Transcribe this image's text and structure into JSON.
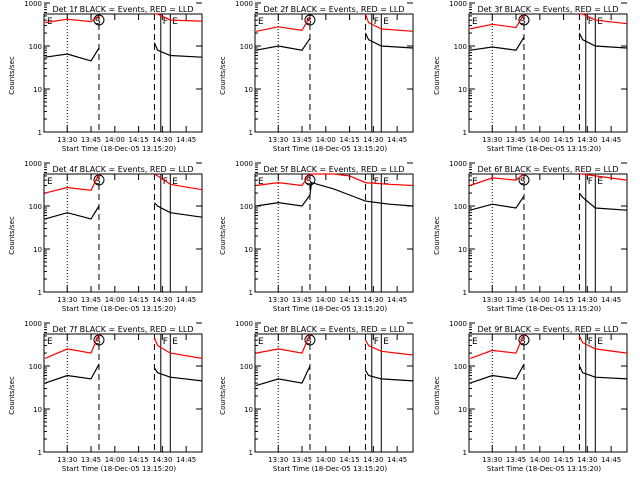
{
  "figure": {
    "start_time_label": "Start Time (18-Dec-05 13:15:20)",
    "ylabel": "Counts/sec"
  },
  "colors": {
    "events": "#000000",
    "lld": "#ff0000",
    "axis": "#000000",
    "background": "#ffffff"
  },
  "chart_data": [
    {
      "type": "line",
      "title": "Det 1f BLACK = Events, RED = LLD",
      "xlabel": "Start Time (18-Dec-05 13:15:20)",
      "ylabel": "Counts/sec",
      "yscale": "log",
      "ylim": [
        1,
        1000
      ],
      "xlim": [
        "13:15:20",
        "14:55:00"
      ],
      "xticks": [
        "13:30",
        "13:45",
        "14:00",
        "14:15",
        "14:30",
        "14:45"
      ],
      "yticks": [
        "1",
        "10",
        "100",
        "1000"
      ],
      "annotations": [
        "E",
        "S",
        "F",
        "E"
      ],
      "markers": {
        "dotted": [
          "13:30"
        ],
        "dashed": [
          "13:50",
          "14:25"
        ],
        "solid": [
          "14:29",
          "14:35"
        ]
      },
      "series": [
        {
          "color": "red",
          "x": [
            "13:16",
            "13:30",
            "13:45",
            "13:50",
            "13:51",
            "14:25",
            "14:27",
            "14:35",
            "14:55"
          ],
          "values": [
            350,
            420,
            370,
            500,
            null,
            700,
            600,
            400,
            380
          ]
        },
        {
          "color": "black",
          "x": [
            "13:16",
            "13:30",
            "13:45",
            "13:50",
            "13:51",
            "14:25",
            "14:27",
            "14:35",
            "14:55"
          ],
          "values": [
            55,
            65,
            45,
            90,
            null,
            120,
            80,
            60,
            55
          ]
        }
      ]
    },
    {
      "type": "line",
      "title": "Det 2f BLACK = Events, RED = LLD",
      "xlabel": "Start Time (18-Dec-05 13:15:20)",
      "ylabel": "Counts/sec",
      "yscale": "log",
      "ylim": [
        1,
        1000
      ],
      "xlim": [
        "13:15:20",
        "14:55:00"
      ],
      "xticks": [
        "13:30",
        "13:45",
        "14:00",
        "14:15",
        "14:30",
        "14:45"
      ],
      "yticks": [
        "1",
        "10",
        "100",
        "1000"
      ],
      "annotations": [
        "E",
        "S",
        "F",
        "E"
      ],
      "markers": {
        "dotted": [
          "13:30"
        ],
        "dashed": [
          "13:50",
          "14:25"
        ],
        "solid": [
          "14:29",
          "14:35"
        ]
      },
      "series": [
        {
          "color": "red",
          "x": [
            "13:16",
            "13:30",
            "13:45",
            "13:50",
            "13:51",
            "14:25",
            "14:27",
            "14:35",
            "14:55"
          ],
          "values": [
            220,
            280,
            230,
            480,
            null,
            650,
            350,
            250,
            220
          ]
        },
        {
          "color": "black",
          "x": [
            "13:16",
            "13:30",
            "13:45",
            "13:50",
            "13:51",
            "14:25",
            "14:27",
            "14:35",
            "14:55"
          ],
          "values": [
            80,
            100,
            80,
            150,
            null,
            200,
            140,
            100,
            90
          ]
        }
      ]
    },
    {
      "type": "line",
      "title": "Det 3f BLACK = Events, RED = LLD",
      "xlabel": "Start Time (18-Dec-05 13:15:20)",
      "ylabel": "Counts/sec",
      "yscale": "log",
      "ylim": [
        1,
        1000
      ],
      "xlim": [
        "13:15:20",
        "14:55:00"
      ],
      "xticks": [
        "13:30",
        "13:45",
        "14:00",
        "14:15",
        "14:30",
        "14:45"
      ],
      "yticks": [
        "1",
        "10",
        "100",
        "1000"
      ],
      "annotations": [
        "E",
        "S",
        "F",
        "E"
      ],
      "markers": {
        "dotted": [
          "13:30"
        ],
        "dashed": [
          "13:50",
          "14:25"
        ],
        "solid": [
          "14:29",
          "14:35"
        ]
      },
      "series": [
        {
          "color": "red",
          "x": [
            "13:16",
            "13:30",
            "13:45",
            "13:50",
            "13:51",
            "14:25",
            "14:27",
            "14:35",
            "14:55"
          ],
          "values": [
            250,
            320,
            270,
            650,
            null,
            700,
            600,
            400,
            330
          ]
        },
        {
          "color": "black",
          "x": [
            "13:16",
            "13:30",
            "13:45",
            "13:50",
            "13:51",
            "14:25",
            "14:27",
            "14:35",
            "14:55"
          ],
          "values": [
            80,
            95,
            80,
            160,
            null,
            200,
            140,
            100,
            90
          ]
        }
      ]
    },
    {
      "type": "line",
      "title": "Det 4f BLACK = Events, RED = LLD",
      "xlabel": "Start Time (18-Dec-05 13:15:20)",
      "ylabel": "Counts/sec",
      "yscale": "log",
      "ylim": [
        1,
        1000
      ],
      "xlim": [
        "13:15:20",
        "14:55:00"
      ],
      "xticks": [
        "13:30",
        "13:45",
        "14:00",
        "14:15",
        "14:30",
        "14:45"
      ],
      "yticks": [
        "1",
        "10",
        "100",
        "1000"
      ],
      "annotations": [
        "E",
        "S",
        "F",
        "E"
      ],
      "markers": {
        "dotted": [
          "13:30"
        ],
        "dashed": [
          "13:50",
          "14:25"
        ],
        "solid": [
          "14:29",
          "14:35"
        ]
      },
      "series": [
        {
          "color": "red",
          "x": [
            "13:16",
            "13:30",
            "13:45",
            "13:50",
            "13:51",
            "14:25",
            "14:27",
            "14:35",
            "14:55"
          ],
          "values": [
            200,
            270,
            230,
            650,
            null,
            600,
            500,
            320,
            240
          ]
        },
        {
          "color": "black",
          "x": [
            "13:16",
            "13:30",
            "13:45",
            "13:50",
            "13:51",
            "14:25",
            "14:27",
            "14:35",
            "14:55"
          ],
          "values": [
            50,
            70,
            50,
            100,
            null,
            120,
            100,
            70,
            55
          ]
        }
      ]
    },
    {
      "type": "line",
      "title": "Det 5f BLACK = Events, RED = LLD",
      "xlabel": "Start Time (18-Dec-05 13:15:20)",
      "ylabel": "Counts/sec",
      "yscale": "log",
      "ylim": [
        1,
        1000
      ],
      "xlim": [
        "13:15:20",
        "14:55:00"
      ],
      "xticks": [
        "13:30",
        "13:45",
        "14:00",
        "14:15",
        "14:30",
        "14:45"
      ],
      "yticks": [
        "1",
        "10",
        "100",
        "1000"
      ],
      "annotations": [
        "E",
        "S",
        "F",
        "E"
      ],
      "markers": {
        "dotted": [
          "13:30"
        ],
        "dashed": [
          "13:50",
          "14:25"
        ],
        "solid": [
          "14:29",
          "14:35"
        ]
      },
      "series": [
        {
          "color": "red",
          "x": [
            "13:16",
            "13:30",
            "13:45",
            "13:50",
            "13:51",
            "14:05",
            "14:15",
            "14:25",
            "14:40",
            "14:55"
          ],
          "values": [
            300,
            350,
            300,
            600,
            1000,
            900,
            500,
            350,
            320,
            300
          ]
        },
        {
          "color": "black",
          "x": [
            "13:16",
            "13:30",
            "13:45",
            "13:50",
            "13:51",
            "14:05",
            "14:15",
            "14:25",
            "14:40",
            "14:55"
          ],
          "values": [
            100,
            120,
            100,
            180,
            350,
            250,
            180,
            130,
            110,
            100
          ]
        }
      ]
    },
    {
      "type": "line",
      "title": "Det 6f BLACK = Events, RED = LLD",
      "xlabel": "Start Time (18-Dec-05 13:15:20)",
      "ylabel": "Counts/sec",
      "yscale": "log",
      "ylim": [
        1,
        1000
      ],
      "xlim": [
        "13:15:20",
        "14:55:00"
      ],
      "xticks": [
        "13:30",
        "13:45",
        "14:00",
        "14:15",
        "14:30",
        "14:45"
      ],
      "yticks": [
        "1",
        "10",
        "100",
        "1000"
      ],
      "annotations": [
        "E",
        "S",
        "F",
        "E"
      ],
      "markers": {
        "dotted": [
          "13:30"
        ],
        "dashed": [
          "13:50",
          "14:25"
        ],
        "solid": [
          "14:29",
          "14:35"
        ]
      },
      "series": [
        {
          "color": "red",
          "x": [
            "13:16",
            "13:30",
            "13:45",
            "13:50",
            "13:51",
            "14:25",
            "14:27",
            "14:35",
            "14:55"
          ],
          "values": [
            300,
            450,
            400,
            900,
            null,
            1000,
            800,
            500,
            400
          ]
        },
        {
          "color": "black",
          "x": [
            "13:16",
            "13:30",
            "13:45",
            "13:50",
            "13:51",
            "14:25",
            "14:27",
            "14:35",
            "14:55"
          ],
          "values": [
            80,
            110,
            90,
            170,
            null,
            200,
            160,
            90,
            80
          ]
        }
      ]
    },
    {
      "type": "line",
      "title": "Det 7f BLACK = Events, RED = LLD",
      "xlabel": "Start Time (18-Dec-05 13:15:20)",
      "ylabel": "Counts/sec",
      "yscale": "log",
      "ylim": [
        1,
        1000
      ],
      "xlim": [
        "13:15:20",
        "14:55:00"
      ],
      "xticks": [
        "13:30",
        "13:45",
        "14:00",
        "14:15",
        "14:30",
        "14:45"
      ],
      "yticks": [
        "1",
        "10",
        "100",
        "1000"
      ],
      "annotations": [
        "E",
        "S",
        "F",
        "E"
      ],
      "markers": {
        "dotted": [
          "13:30"
        ],
        "dashed": [
          "13:50",
          "14:25"
        ],
        "solid": [
          "14:29",
          "14:35"
        ]
      },
      "series": [
        {
          "color": "red",
          "x": [
            "13:16",
            "13:30",
            "13:45",
            "13:50",
            "13:51",
            "14:25",
            "14:27",
            "14:35",
            "14:55"
          ],
          "values": [
            150,
            250,
            200,
            900,
            null,
            450,
            300,
            200,
            150
          ]
        },
        {
          "color": "black",
          "x": [
            "13:16",
            "13:30",
            "13:45",
            "13:50",
            "13:51",
            "14:25",
            "14:27",
            "14:35",
            "14:55"
          ],
          "values": [
            40,
            60,
            50,
            110,
            null,
            90,
            70,
            55,
            45
          ]
        }
      ]
    },
    {
      "type": "line",
      "title": "Det 8f BLACK = Events, RED = LLD",
      "xlabel": "Start Time (18-Dec-05 13:15:20)",
      "ylabel": "Counts/sec",
      "yscale": "log",
      "ylim": [
        1,
        1000
      ],
      "xlim": [
        "13:15:20",
        "14:55:00"
      ],
      "xticks": [
        "13:30",
        "13:45",
        "14:00",
        "14:15",
        "14:30",
        "14:45"
      ],
      "yticks": [
        "1",
        "10",
        "100",
        "1000"
      ],
      "annotations": [
        "E",
        "S",
        "F",
        "E"
      ],
      "markers": {
        "dotted": [
          "13:30"
        ],
        "dashed": [
          "13:50",
          "14:25"
        ],
        "solid": [
          "14:29",
          "14:35"
        ]
      },
      "series": [
        {
          "color": "red",
          "x": [
            "13:16",
            "13:30",
            "13:45",
            "13:50",
            "13:51",
            "14:25",
            "14:27",
            "14:35",
            "14:55"
          ],
          "values": [
            200,
            250,
            200,
            900,
            null,
            400,
            300,
            220,
            180
          ]
        },
        {
          "color": "black",
          "x": [
            "13:16",
            "13:30",
            "13:45",
            "13:50",
            "13:51",
            "14:25",
            "14:27",
            "14:35",
            "14:55"
          ],
          "values": [
            35,
            50,
            40,
            100,
            null,
            80,
            60,
            50,
            45
          ]
        }
      ]
    },
    {
      "type": "line",
      "title": "Det 9f BLACK = Events, RED = LLD",
      "xlabel": "Start Time (18-Dec-05 13:15:20)",
      "ylabel": "Counts/sec",
      "yscale": "log",
      "ylim": [
        1,
        1000
      ],
      "xlim": [
        "13:15:20",
        "14:55:00"
      ],
      "xticks": [
        "13:30",
        "13:45",
        "14:00",
        "14:15",
        "14:30",
        "14:45"
      ],
      "yticks": [
        "1",
        "10",
        "100",
        "1000"
      ],
      "annotations": [
        "E",
        "S",
        "F",
        "E"
      ],
      "markers": {
        "dotted": [
          "13:30"
        ],
        "dashed": [
          "13:50",
          "14:25"
        ],
        "solid": [
          "14:29",
          "14:35"
        ]
      },
      "series": [
        {
          "color": "red",
          "x": [
            "13:16",
            "13:30",
            "13:45",
            "13:50",
            "13:51",
            "14:25",
            "14:27",
            "14:35",
            "14:55"
          ],
          "values": [
            150,
            230,
            200,
            900,
            null,
            500,
            350,
            250,
            200
          ]
        },
        {
          "color": "black",
          "x": [
            "13:16",
            "13:30",
            "13:45",
            "13:50",
            "13:51",
            "14:25",
            "14:27",
            "14:35",
            "14:55"
          ],
          "values": [
            40,
            60,
            50,
            110,
            null,
            100,
            70,
            55,
            50
          ]
        }
      ]
    }
  ]
}
